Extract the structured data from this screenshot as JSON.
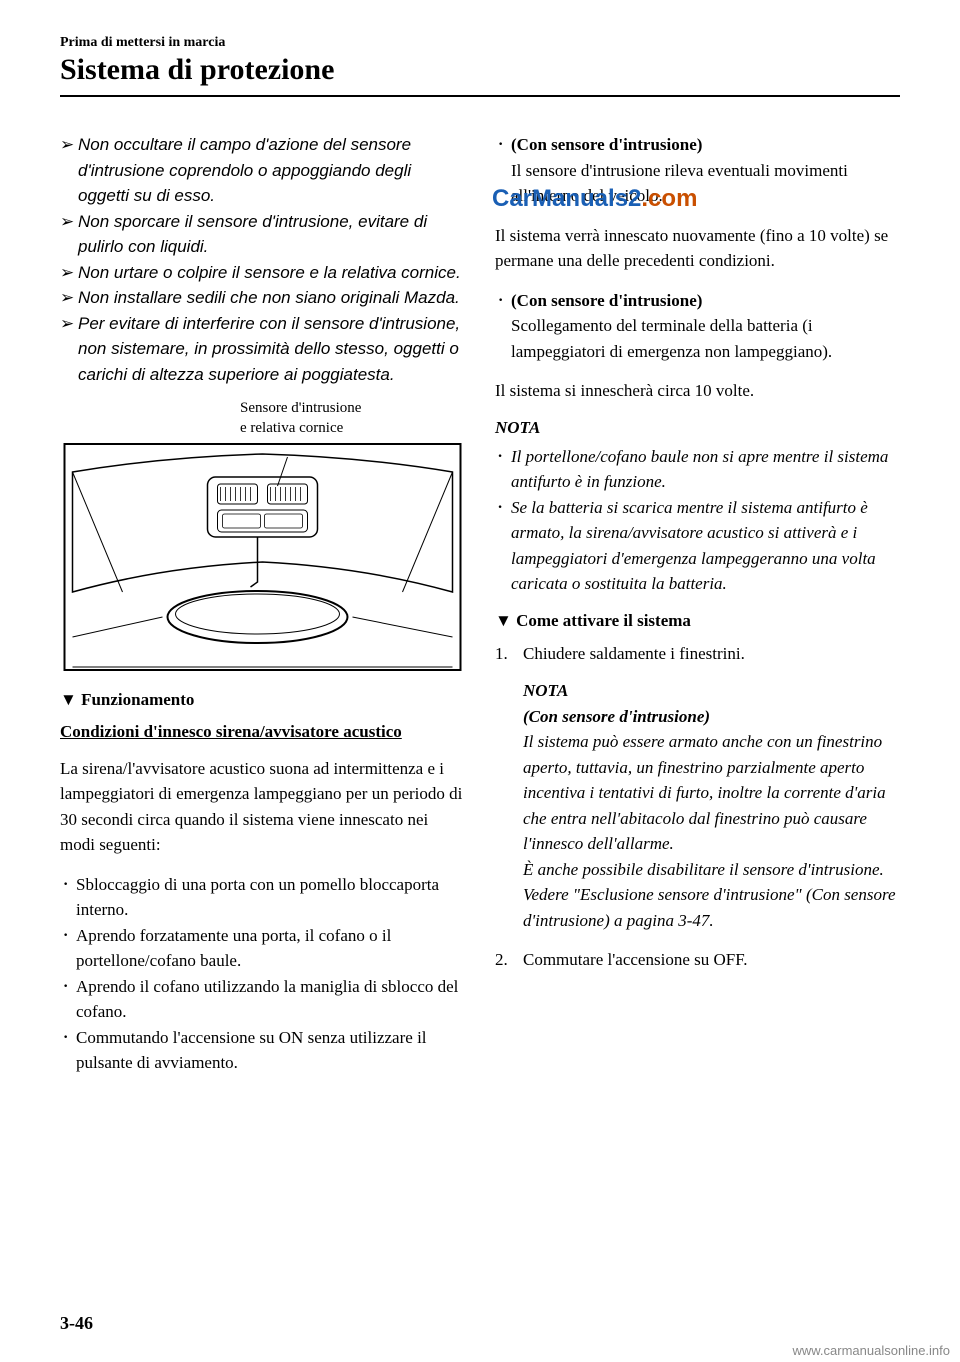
{
  "header": {
    "small": "Prima di mettersi in marcia",
    "large": "Sistema di protezione"
  },
  "left": {
    "warnings": [
      "Non occultare il campo d'azione del sensore d'intrusione coprendolo o appoggiando degli oggetti su di esso.",
      "Non sporcare il sensore d'intrusione, evitare di pulirlo con liquidi.",
      "Non urtare o colpire il sensore e la relativa cornice.",
      "Non installare sedili che non siano originali Mazda.",
      "Per evitare di interferire con il sensore d'intrusione, non sistemare, in prossimità dello stesso, oggetti o carichi di altezza superiore ai poggiatesta."
    ],
    "diagram_caption_line1": "Sensore d'intrusione",
    "diagram_caption_line2": "e relativa cornice",
    "subsection": "Funzionamento",
    "condition_heading": "Condizioni d'innesco sirena/avvisatore acustico",
    "body1": "La sirena/l'avvisatore acustico suona ad intermittenza e i lampeggiatori di emergenza lampeggiano per un periodo di 30 secondi circa quando il sistema viene innescato nei modi seguenti:",
    "triggers": [
      "Sbloccaggio di una porta con un pomello bloccaporta interno.",
      "Aprendo forzatamente una porta, il cofano o il portellone/cofano baule.",
      "Aprendo il cofano utilizzando la maniglia di sblocco del cofano.",
      "Commutando l'accensione su ON senza utilizzare il pulsante di avviamento."
    ]
  },
  "right": {
    "sensor_item": {
      "title": "(Con sensore d'intrusione)",
      "text": "Il sensore d'intrusione rileva eventuali movimenti all'interno del veicolo."
    },
    "body2": "Il sistema verrà innescato nuovamente (fino a 10 volte) se permane una delle precedenti condizioni.",
    "sensor_item2": {
      "title": "(Con sensore d'intrusione)",
      "text": "Scollegamento del terminale della batteria (i lampeggiatori di emergenza non lampeggiano)."
    },
    "body3": "Il sistema si innescherà circa 10 volte.",
    "nota_label": "NOTA",
    "nota_items": [
      "Il portellone/cofano baule non si apre mentre il sistema antifurto è in funzione.",
      "Se la batteria si scarica mentre il sistema antifurto è armato, la sirena/avvisatore acustico si attiverà e i lampeggiatori d'emergenza lampeggeranno una volta caricata o sostituita la batteria."
    ],
    "subsection2": "Come attivare il sistema",
    "steps": {
      "step1": "Chiudere saldamente i finestrini.",
      "step1_nota_title": "NOTA",
      "step1_nota_subtitle": "(Con sensore d'intrusione)",
      "step1_nota_body": "Il sistema può essere armato anche con un finestrino aperto, tuttavia, un finestrino parzialmente aperto incentiva i tentativi di furto, inoltre la corrente d'aria che entra nell'abitacolo dal finestrino può causare l'innesco dell'allarme.\nÈ anche possibile disabilitare il sensore d'intrusione.\nVedere \"Esclusione sensore d'intrusione\" (Con sensore d'intrusione) a pagina 3-47.",
      "step2": "Commutare l'accensione su OFF."
    }
  },
  "page_number": "3-46",
  "watermark": {
    "part1": "CarManuals2",
    "part2": ".com"
  },
  "footer_url": "www.carmanualsonline.info",
  "colors": {
    "text": "#000000",
    "background": "#ffffff",
    "watermark_blue": "#1a5fb4",
    "watermark_orange": "#c94f00",
    "footer": "#888888"
  },
  "typography": {
    "header_small_pt": 14,
    "header_large_pt": 30,
    "body_pt": 17,
    "page_number_pt": 18
  }
}
